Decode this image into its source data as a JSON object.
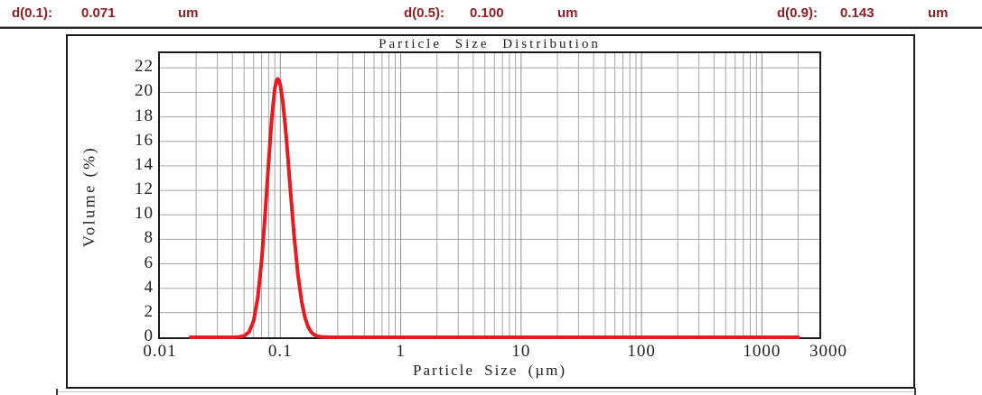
{
  "header": {
    "items": [
      {
        "label": "d(0.1):",
        "value": "0.071",
        "unit": "um"
      },
      {
        "label": "d(0.5):",
        "value": "0.100",
        "unit": "um"
      },
      {
        "label": "d(0.9):",
        "value": "0.143",
        "unit": "um"
      }
    ]
  },
  "colors": {
    "header_text": "#8e1f23",
    "curve": "#e81a1f",
    "grid_minor": "#a6a6a6",
    "grid_major": "#8f8f8f",
    "frame": "#1a1a1a"
  },
  "chart_data": {
    "type": "line",
    "title": "Particle Size Distribution",
    "xlabel": "Particle Size (µm)",
    "ylabel": "Volume (%)",
    "x_scale": "log",
    "xlim": [
      0.01,
      3000
    ],
    "ylim": [
      0,
      23.2
    ],
    "grid": true,
    "legend": "none",
    "x_tick_values": [
      0.01,
      0.1,
      1,
      10,
      100,
      1000,
      3000
    ],
    "x_tick_labels": [
      "0.01",
      "0.1",
      "1",
      "10",
      "100",
      "1000",
      "3000"
    ],
    "y_tick_values": [
      0,
      2,
      4,
      6,
      8,
      10,
      12,
      14,
      16,
      18,
      20,
      22
    ],
    "x_major_gridlines": [
      0.1,
      1,
      10,
      100,
      1000
    ],
    "x_minor_gridlines": [
      0.02,
      0.03,
      0.04,
      0.05,
      0.06,
      0.07,
      0.08,
      0.09,
      0.2,
      0.3,
      0.4,
      0.5,
      0.6,
      0.7,
      0.8,
      0.9,
      2,
      3,
      4,
      5,
      6,
      7,
      8,
      9,
      20,
      30,
      40,
      50,
      60,
      70,
      80,
      90,
      200,
      300,
      400,
      500,
      600,
      700,
      800,
      900,
      2000
    ],
    "series": [
      {
        "name": "Volume (%)",
        "color": "#e81a1f",
        "peak": {
          "x": 0.095,
          "y": 21.1
        },
        "points": [
          [
            0.018,
            0
          ],
          [
            0.03,
            0
          ],
          [
            0.04,
            0
          ],
          [
            0.045,
            0.02
          ],
          [
            0.05,
            0.1
          ],
          [
            0.055,
            0.43
          ],
          [
            0.06,
            1.34
          ],
          [
            0.065,
            3.22
          ],
          [
            0.07,
            6.26
          ],
          [
            0.075,
            10.19
          ],
          [
            0.08,
            14.36
          ],
          [
            0.085,
            17.96
          ],
          [
            0.09,
            20.31
          ],
          [
            0.0925,
            20.9
          ],
          [
            0.095,
            21.1
          ],
          [
            0.0975,
            20.97
          ],
          [
            0.1,
            20.58
          ],
          [
            0.105,
            19.2
          ],
          [
            0.11,
            17.24
          ],
          [
            0.115,
            14.96
          ],
          [
            0.12,
            12.62
          ],
          [
            0.13,
            8.35
          ],
          [
            0.14,
            5.11
          ],
          [
            0.15,
            2.95
          ],
          [
            0.16,
            1.63
          ],
          [
            0.17,
            0.87
          ],
          [
            0.18,
            0.45
          ],
          [
            0.19,
            0.23
          ],
          [
            0.2,
            0.11
          ],
          [
            0.22,
            0.03
          ],
          [
            0.25,
            0
          ],
          [
            0.3,
            0
          ],
          [
            0.5,
            0
          ],
          [
            1,
            0
          ],
          [
            2,
            0
          ],
          [
            5,
            0
          ],
          [
            10,
            0
          ],
          [
            20,
            0
          ],
          [
            50,
            0
          ],
          [
            100,
            0
          ],
          [
            200,
            0
          ],
          [
            500,
            0
          ],
          [
            1000,
            0
          ],
          [
            2000,
            0
          ]
        ]
      }
    ]
  }
}
